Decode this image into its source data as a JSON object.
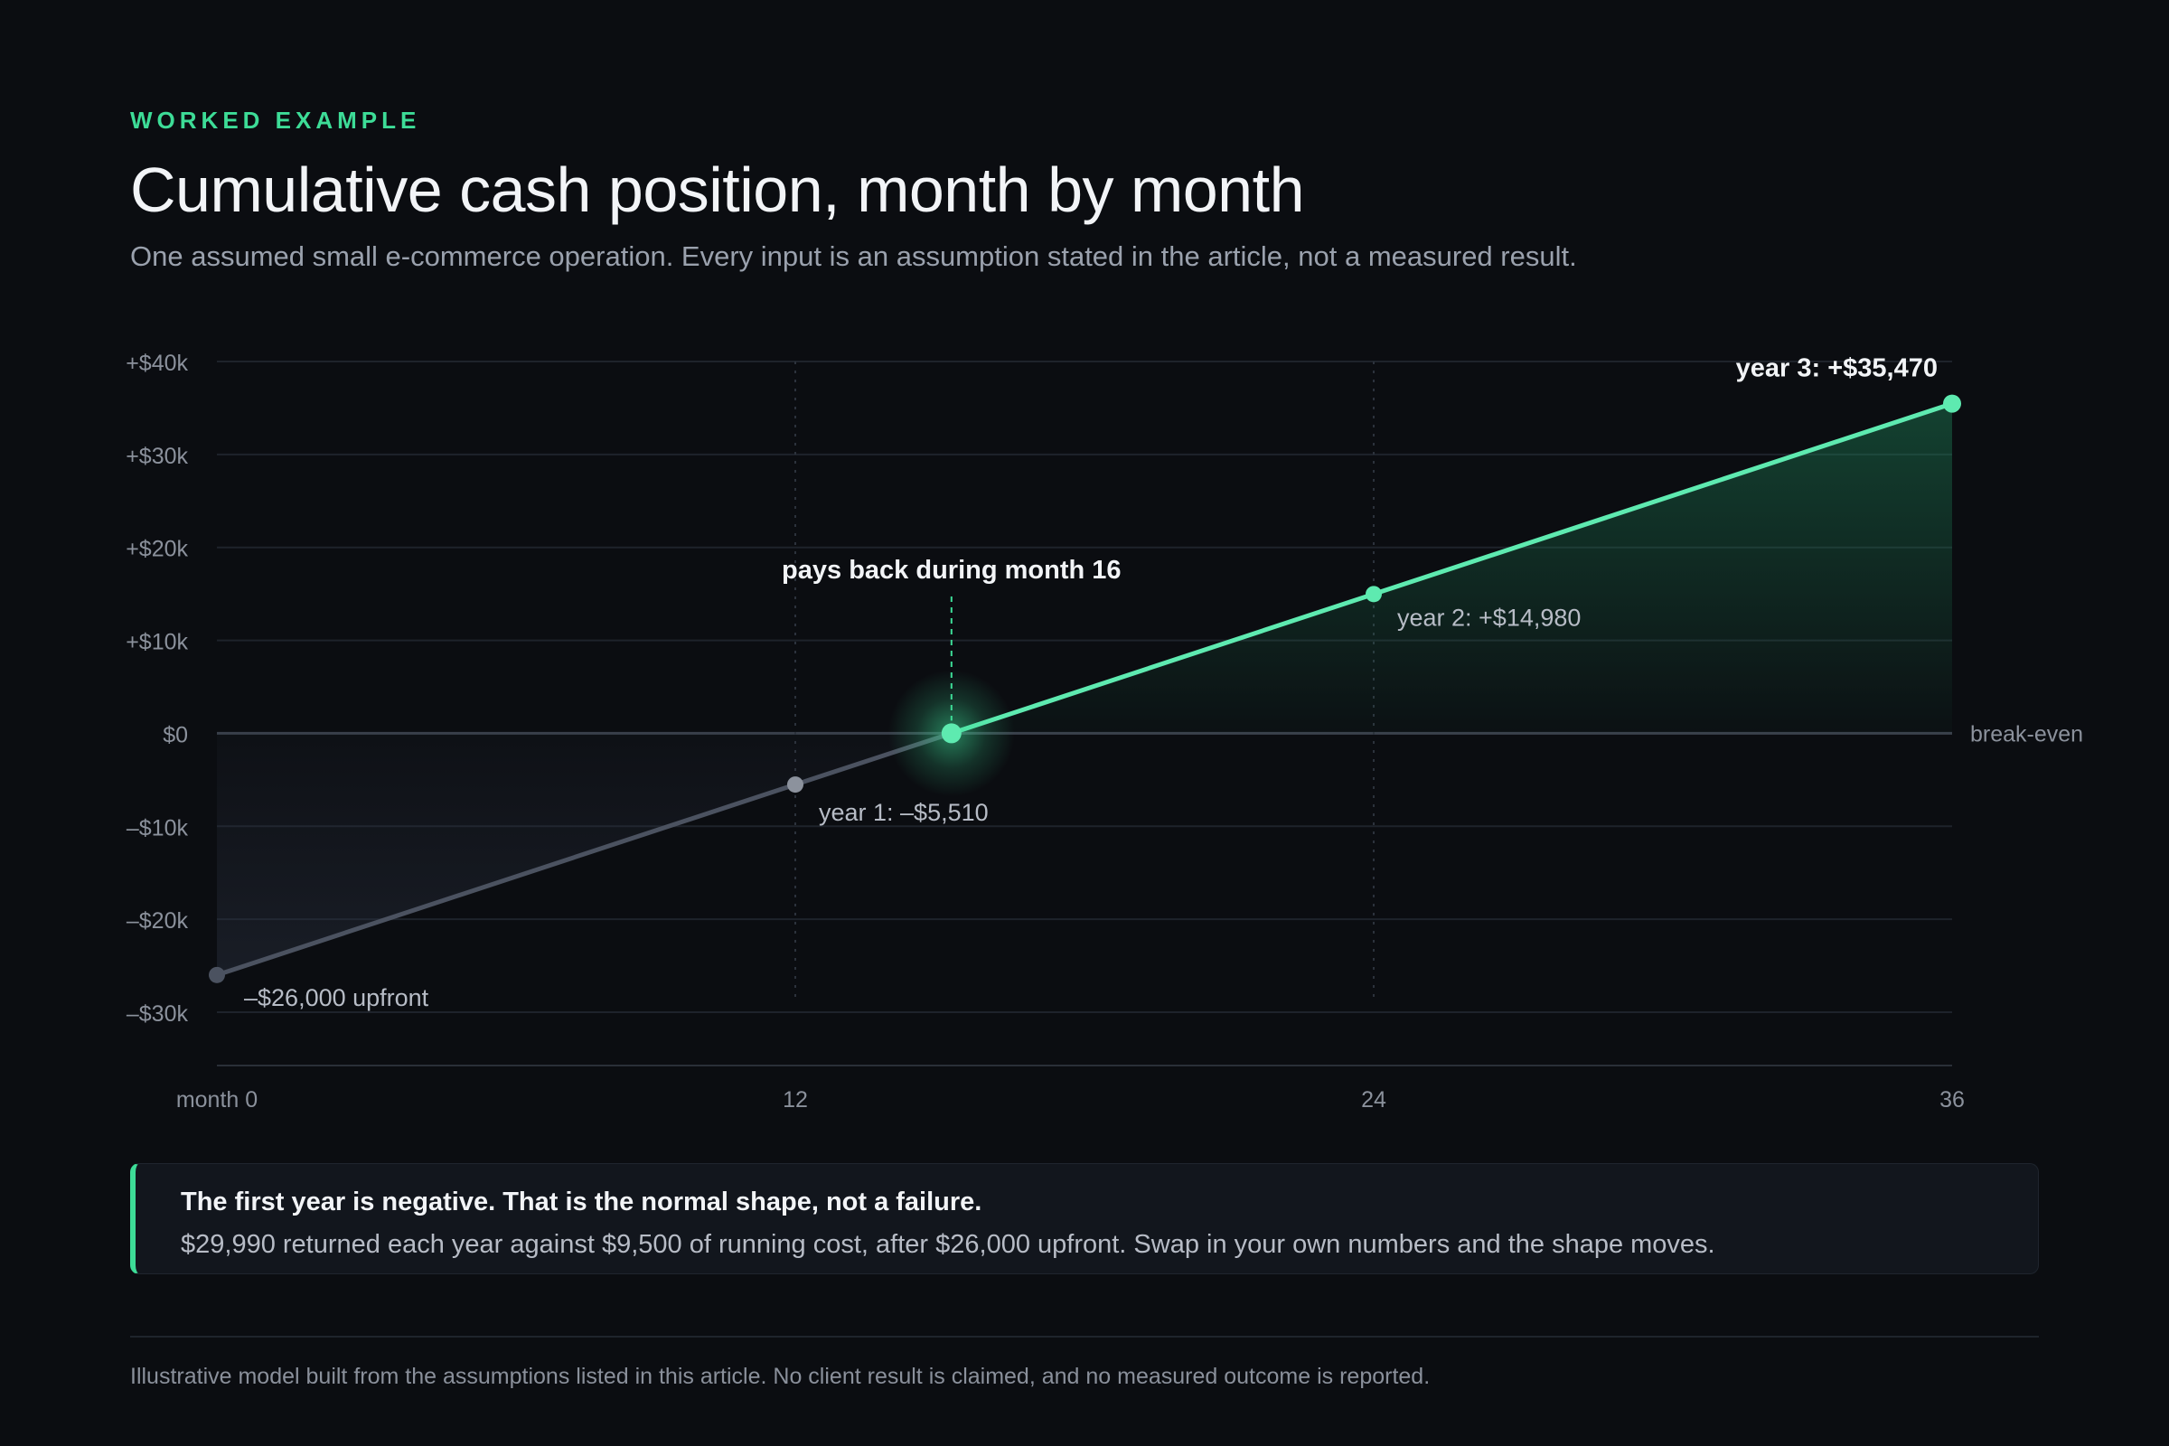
{
  "header": {
    "eyebrow": "WORKED EXAMPLE",
    "title": "Cumulative cash position, month by month",
    "subtitle": "One assumed small e-commerce operation. Every input is an assumption stated in the article, not a measured result."
  },
  "chart_data": {
    "type": "line",
    "title": "Cumulative cash position, month by month",
    "xlabel": "",
    "ylabel": "",
    "xlim": [
      0,
      36
    ],
    "ylim": [
      -30000,
      40000
    ],
    "x_ticks": [
      0,
      12,
      24,
      36
    ],
    "x_tick_labels": [
      "month 0",
      "12",
      "24",
      "36"
    ],
    "y_ticks": [
      40000,
      30000,
      20000,
      10000,
      0,
      -10000,
      -20000,
      -30000
    ],
    "y_tick_labels": [
      "+$40k",
      "+$30k",
      "+$20k",
      "+$10k",
      "$0",
      "–$10k",
      "–$20k",
      "–$30k"
    ],
    "grid": true,
    "series": [
      {
        "x": [
          0,
          12,
          15.24,
          24,
          36
        ],
        "y": [
          -26000,
          -5510,
          0,
          14980,
          35470
        ]
      }
    ],
    "points": [
      {
        "x": 0,
        "y": -26000,
        "label": "–$26,000 upfront"
      },
      {
        "x": 12,
        "y": -5510,
        "label": "year 1: –$5,510"
      },
      {
        "x": 24,
        "y": 14980,
        "label": "year 2: +$14,980"
      },
      {
        "x": 36,
        "y": 35470,
        "label": "year 3: +$35,470"
      }
    ],
    "breakeven": {
      "x": 15.24,
      "y": 0,
      "label": "pays back during month 16"
    },
    "zero_line_label": "break-even",
    "colors": {
      "positive": "#5eeab0",
      "negative": "#4b5260",
      "accent": "#3ddc97",
      "background": "#0b0d11"
    }
  },
  "callout": {
    "heading": "The first year is negative. That is the normal shape, not a failure.",
    "body": "$29,990 returned each year against $9,500 of running cost, after $26,000 upfront. Swap in your own numbers and the shape moves."
  },
  "footer": {
    "note": "Illustrative model built from the assumptions listed in this article. No client result is claimed, and no measured outcome is reported."
  }
}
